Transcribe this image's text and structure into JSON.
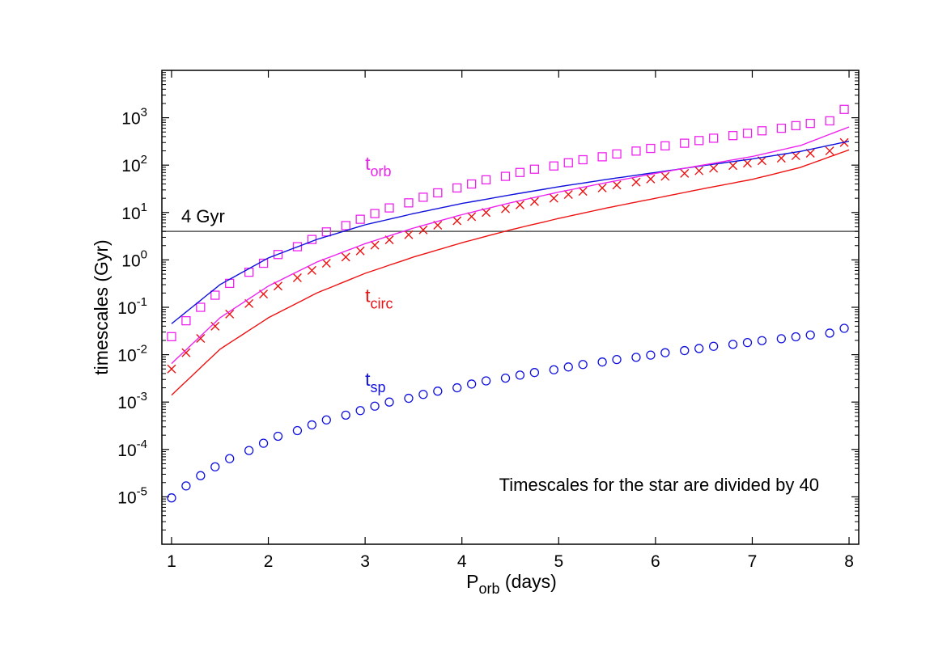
{
  "chart_data": {
    "type": "scatter",
    "title": "",
    "xlabel_main": "P",
    "xlabel_sub": "orb",
    "xlabel_tail": " (days)",
    "ylabel": "timescales (Gyr)",
    "xlim": [
      0.9,
      8.1
    ],
    "ylim_log10": [
      -6,
      4
    ],
    "y_log_scale": true,
    "x_ticks": [
      1,
      2,
      3,
      4,
      5,
      6,
      7,
      8
    ],
    "y_ticks": [
      {
        "base": "10",
        "exp": "-5",
        "value": 1e-05
      },
      {
        "base": "10",
        "exp": "-4",
        "value": 0.0001
      },
      {
        "base": "10",
        "exp": "-3",
        "value": 0.001
      },
      {
        "base": "10",
        "exp": "-2",
        "value": 0.01
      },
      {
        "base": "10",
        "exp": "-1",
        "value": 0.1
      },
      {
        "base": "10",
        "exp": "0",
        "value": 1
      },
      {
        "base": "10",
        "exp": "1",
        "value": 10
      },
      {
        "base": "10",
        "exp": "2",
        "value": 100
      },
      {
        "base": "10",
        "exp": "3",
        "value": 1000
      }
    ],
    "reference_line": {
      "value": 4,
      "label": "4 Gyr",
      "color": "#555555"
    },
    "annotation": "Timescales for the star are divided by 40",
    "series_labels": [
      {
        "main": "t",
        "sub": "orb",
        "color": "#ee22ee",
        "x": 3.0,
        "y": 80
      },
      {
        "main": "t",
        "sub": "circ",
        "color": "#ee1111",
        "x": 3.0,
        "y": 0.13
      },
      {
        "main": "t",
        "sub": "sp",
        "color": "#1111dd",
        "x": 3.0,
        "y": 0.0022
      }
    ],
    "series": [
      {
        "kind": "markers",
        "marker": "square",
        "color": "#ee22ee",
        "x": [
          1.0,
          1.15,
          1.3,
          1.45,
          1.6,
          1.8,
          1.95,
          2.1,
          2.3,
          2.45,
          2.6,
          2.8,
          2.95,
          3.1,
          3.25,
          3.45,
          3.6,
          3.75,
          3.95,
          4.1,
          4.25,
          4.45,
          4.6,
          4.75,
          4.95,
          5.1,
          5.25,
          5.45,
          5.6,
          5.8,
          5.95,
          6.1,
          6.3,
          6.45,
          6.6,
          6.8,
          6.95,
          7.1,
          7.3,
          7.45,
          7.6,
          7.8,
          7.95
        ],
        "y": [
          0.024,
          0.052,
          0.1,
          0.18,
          0.32,
          0.55,
          0.85,
          1.3,
          1.9,
          2.7,
          3.9,
          5.3,
          7.2,
          9.5,
          12.5,
          16,
          21,
          26,
          33,
          40,
          49,
          58,
          70,
          82,
          96,
          112,
          130,
          150,
          172,
          198,
          225,
          255,
          290,
          330,
          370,
          420,
          470,
          530,
          600,
          680,
          760,
          860,
          1500
        ]
      },
      {
        "kind": "markers",
        "marker": "cross",
        "color": "#ee1111",
        "x": [
          1.0,
          1.15,
          1.3,
          1.45,
          1.6,
          1.8,
          1.95,
          2.1,
          2.3,
          2.45,
          2.6,
          2.8,
          2.95,
          3.1,
          3.25,
          3.45,
          3.6,
          3.75,
          3.95,
          4.1,
          4.25,
          4.45,
          4.6,
          4.75,
          4.95,
          5.1,
          5.25,
          5.45,
          5.6,
          5.8,
          5.95,
          6.1,
          6.3,
          6.45,
          6.6,
          6.8,
          6.95,
          7.1,
          7.3,
          7.45,
          7.6,
          7.8,
          7.95
        ],
        "y": [
          0.005,
          0.011,
          0.022,
          0.04,
          0.072,
          0.12,
          0.19,
          0.28,
          0.42,
          0.6,
          0.85,
          1.15,
          1.55,
          2.05,
          2.65,
          3.4,
          4.3,
          5.4,
          6.7,
          8.2,
          10,
          12,
          14.5,
          17,
          20,
          24,
          28,
          33,
          38,
          44,
          51,
          58,
          67,
          76,
          86,
          98,
          110,
          124,
          140,
          158,
          178,
          200,
          300
        ]
      },
      {
        "kind": "markers",
        "marker": "circle",
        "color": "#1111dd",
        "x": [
          1.0,
          1.15,
          1.3,
          1.45,
          1.6,
          1.8,
          1.95,
          2.1,
          2.3,
          2.45,
          2.6,
          2.8,
          2.95,
          3.1,
          3.25,
          3.45,
          3.6,
          3.75,
          3.95,
          4.1,
          4.25,
          4.45,
          4.6,
          4.75,
          4.95,
          5.1,
          5.25,
          5.45,
          5.6,
          5.8,
          5.95,
          6.1,
          6.3,
          6.45,
          6.6,
          6.8,
          6.95,
          7.1,
          7.3,
          7.45,
          7.6,
          7.8,
          7.95
        ],
        "y": [
          9.5e-06,
          1.7e-05,
          2.8e-05,
          4.3e-05,
          6.4e-05,
          9.5e-05,
          0.000135,
          0.00019,
          0.00025,
          0.00033,
          0.00042,
          0.00053,
          0.00066,
          0.00082,
          0.001,
          0.0012,
          0.00145,
          0.0017,
          0.002,
          0.0024,
          0.0028,
          0.0032,
          0.0037,
          0.0042,
          0.0048,
          0.0055,
          0.0062,
          0.007,
          0.0079,
          0.0088,
          0.0098,
          0.011,
          0.0122,
          0.0135,
          0.015,
          0.0165,
          0.018,
          0.0198,
          0.0217,
          0.0238,
          0.026,
          0.0285,
          0.036
        ]
      },
      {
        "kind": "line",
        "color": "#1111dd",
        "x": [
          1.0,
          1.5,
          2.0,
          2.5,
          3.0,
          3.5,
          4.0,
          4.5,
          5.0,
          5.5,
          6.0,
          6.5,
          7.0,
          7.5,
          8.0
        ],
        "y": [
          0.045,
          0.3,
          1.1,
          2.7,
          5.5,
          9.5,
          15.5,
          23.5,
          35,
          50,
          70,
          98,
          135,
          195,
          320
        ]
      },
      {
        "kind": "line",
        "color": "#ee22ee",
        "x": [
          1.0,
          1.5,
          2.0,
          2.5,
          3.0,
          3.5,
          4.0,
          4.5,
          5.0,
          5.5,
          6.0,
          6.5,
          7.0,
          7.5,
          8.0
        ],
        "y": [
          0.0065,
          0.06,
          0.28,
          0.9,
          2.2,
          4.7,
          9,
          16,
          27,
          43,
          67,
          101,
          152,
          260,
          640
        ]
      },
      {
        "kind": "line",
        "color": "#ee1111",
        "x": [
          1.0,
          1.5,
          2.0,
          2.5,
          3.0,
          3.5,
          4.0,
          4.5,
          5.0,
          5.5,
          6.0,
          6.5,
          7.0,
          7.5,
          8.0
        ],
        "y": [
          0.0014,
          0.013,
          0.06,
          0.2,
          0.52,
          1.15,
          2.3,
          4.3,
          7.5,
          12.5,
          20,
          32,
          50,
          90,
          210
        ]
      }
    ]
  }
}
